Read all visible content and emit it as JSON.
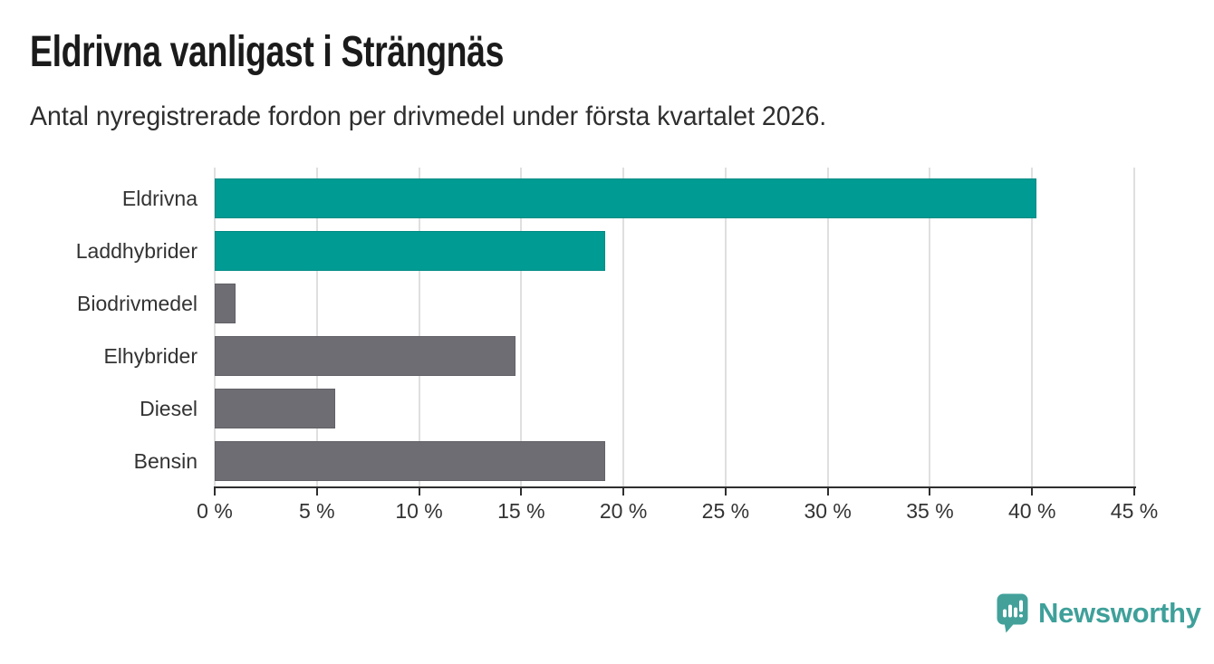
{
  "header": {
    "title": "Eldrivna vanligast i Strängnäs",
    "subtitle": "Antal nyregistrerade fordon per drivmedel under första kvartalet 2026."
  },
  "chart_data": {
    "type": "bar",
    "orientation": "horizontal",
    "categories": [
      "Eldrivna",
      "Laddhybrider",
      "Biodrivmedel",
      "Elhybrider",
      "Diesel",
      "Bensin"
    ],
    "values": [
      40.2,
      19.1,
      1.0,
      14.7,
      5.9,
      19.1
    ],
    "unit": "%",
    "bar_colors": [
      "#009b93",
      "#009b93",
      "#6e6d73",
      "#6e6d73",
      "#6e6d73",
      "#6e6d73"
    ],
    "accent_color": "#009b93",
    "muted_color": "#6e6d73",
    "xlim": [
      0,
      45
    ],
    "x_ticks": [
      0,
      5,
      10,
      15,
      20,
      25,
      30,
      35,
      40,
      45
    ],
    "x_tick_labels": [
      "0 %",
      "5 %",
      "10 %",
      "15 %",
      "20 %",
      "25 %",
      "30 %",
      "35 %",
      "40 %",
      "45 %"
    ],
    "grid": "vertical",
    "legend": "none"
  },
  "footer": {
    "brand": "Newsworthy",
    "brand_color": "#3fa09a",
    "logo_icon": "speech-bubble-bar-chart-icon"
  }
}
